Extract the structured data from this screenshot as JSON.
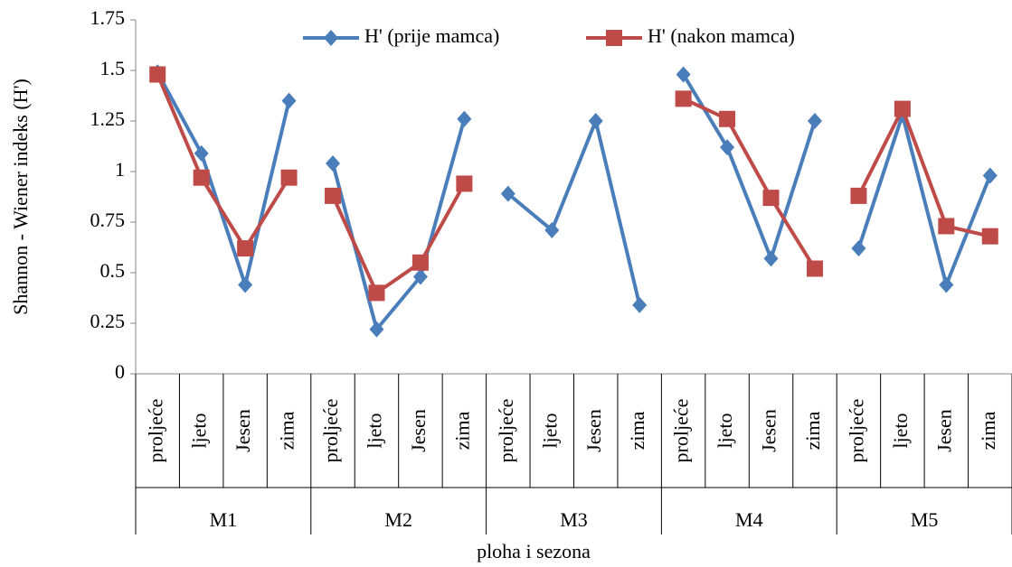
{
  "chart_data": {
    "type": "line",
    "ylabel": "Shannon - Wiener indeks (H')",
    "xlabel": "ploha i sezona",
    "categories": [
      "proljeće",
      "ljeto",
      "Jesen",
      "zima",
      "proljeće",
      "ljeto",
      "Jesen",
      "zima",
      "proljeće",
      "ljeto",
      "Jesen",
      "zima",
      "proljeće",
      "ljeto",
      "Jesen",
      "zima",
      "proljeće",
      "ljeto",
      "Jesen",
      "zima"
    ],
    "groups": [
      "M1",
      "M2",
      "M3",
      "M4",
      "M5"
    ],
    "ylim": [
      0,
      1.75
    ],
    "yticks": [
      0,
      0.25,
      0.5,
      0.75,
      1,
      1.25,
      1.5,
      1.75
    ],
    "grid": false,
    "legend": "top",
    "series": [
      {
        "name": "H' (prije mamca)",
        "color": "#4a7ebb",
        "marker": "diamond",
        "values": [
          1.49,
          1.09,
          0.44,
          1.35,
          1.04,
          0.22,
          0.48,
          1.26,
          0.89,
          0.71,
          1.25,
          0.34,
          1.48,
          1.12,
          0.57,
          1.25,
          0.62,
          1.28,
          0.44,
          0.98
        ]
      },
      {
        "name": "H' (nakon mamca)",
        "color": "#be4b48",
        "marker": "square",
        "values": [
          1.48,
          0.97,
          0.62,
          0.97,
          0.88,
          0.4,
          0.55,
          0.94,
          null,
          null,
          null,
          null,
          1.36,
          1.26,
          0.87,
          0.52,
          0.88,
          1.31,
          0.73,
          0.68
        ]
      }
    ]
  }
}
